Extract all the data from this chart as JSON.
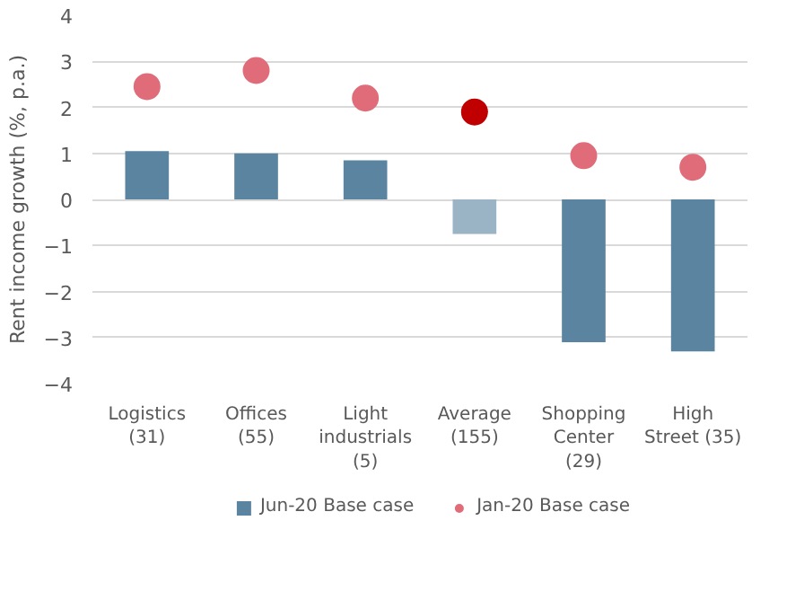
{
  "chart_data": {
    "type": "bar",
    "ylabel": "Rent income growth (%, p.a.)",
    "categories": [
      "Logistics\n(31)",
      "Offices\n(55)",
      "Light\nindustrials\n(5)",
      "Average\n(155)",
      "Shopping\nCenter\n(29)",
      "High\nStreet (35)"
    ],
    "series": [
      {
        "name": "Jun-20 Base case",
        "type": "bar",
        "color": "#5b84a0",
        "colors": [
          "#5b84a0",
          "#5b84a0",
          "#5b84a0",
          "#9ab3c5",
          "#5b84a0",
          "#5b84a0"
        ],
        "values": [
          1.05,
          1.0,
          0.85,
          -0.75,
          -3.1,
          -3.3
        ]
      },
      {
        "name": "Jan-20 Base case",
        "type": "scatter",
        "color": "#e06c7a",
        "colors": [
          "#e06c7a",
          "#e06c7a",
          "#e06c7a",
          "#c00000",
          "#e06c7a",
          "#e06c7a"
        ],
        "values": [
          2.45,
          2.8,
          2.2,
          1.9,
          0.95,
          0.7
        ]
      }
    ],
    "ylim": [
      -4,
      4
    ],
    "yticks": [
      -4,
      -3,
      -2,
      -1,
      0,
      1,
      2,
      3,
      4
    ],
    "grid": "y",
    "legend": "bottom",
    "marker": "circle"
  }
}
